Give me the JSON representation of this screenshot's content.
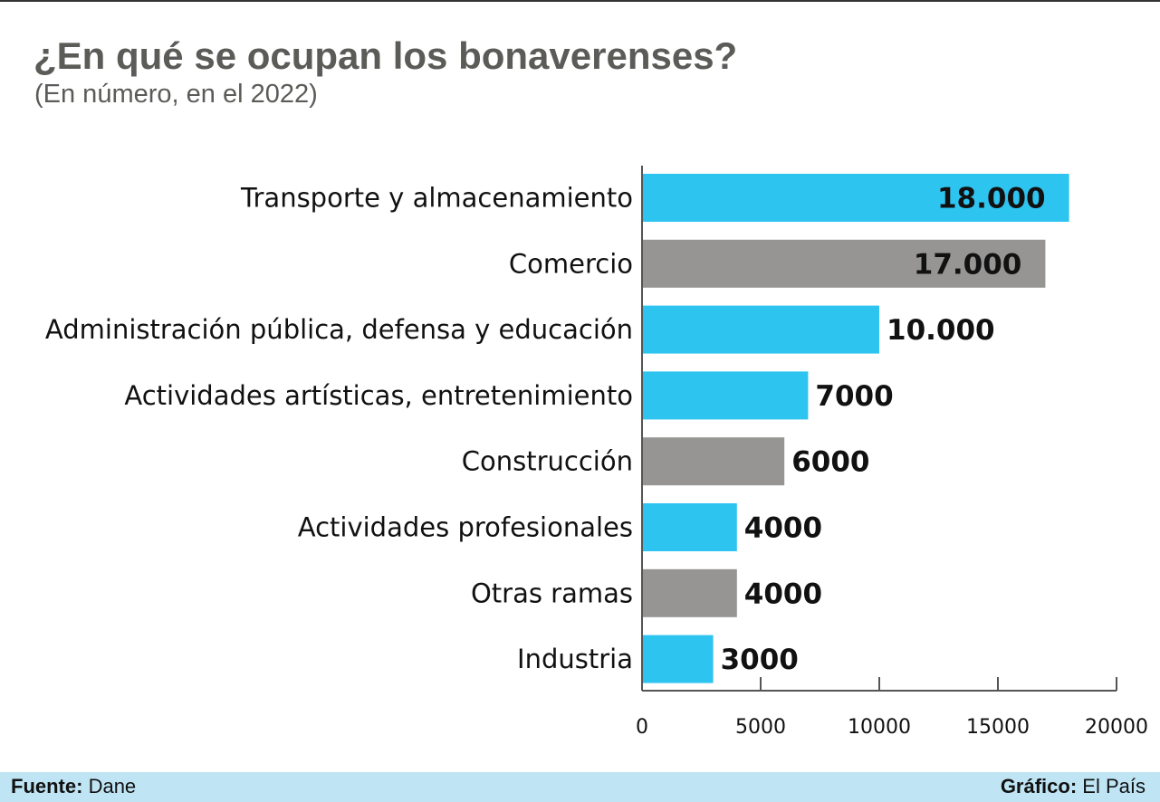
{
  "header": {
    "title": "¿En qué se ocupan los bonaverenses?",
    "subtitle": "(En número, en el 2022)"
  },
  "footer": {
    "source_label": "Fuente:",
    "source_value": "Dane",
    "credit_label": "Gráfico:",
    "credit_value": "El País"
  },
  "colors": {
    "blue": "#2ec4f0",
    "gray": "#969594",
    "axis": "#555555"
  },
  "chart_data": {
    "type": "bar",
    "orientation": "horizontal",
    "categories": [
      "Transporte y almacenamiento",
      "Comercio",
      "Administración pública, defensa y educación",
      "Actividades artísticas, entretenimiento",
      "Construcción",
      "Actividades profesionales",
      "Otras ramas",
      "Industria"
    ],
    "values": [
      18000,
      17000,
      10000,
      7000,
      6000,
      4000,
      4000,
      3000
    ],
    "value_labels": [
      "18.000",
      "17.000",
      "10.000",
      "7000",
      "6000",
      "4000",
      "4000",
      "3000"
    ],
    "bar_colors": [
      "blue",
      "gray",
      "blue",
      "blue",
      "gray",
      "blue",
      "gray",
      "blue"
    ],
    "xlim": [
      0,
      20000
    ],
    "xticks": [
      0,
      5000,
      10000,
      15000,
      20000
    ],
    "xtick_labels": [
      "0",
      "5000",
      "10000",
      "15000",
      "20000"
    ],
    "grid": false,
    "legend": "none"
  }
}
